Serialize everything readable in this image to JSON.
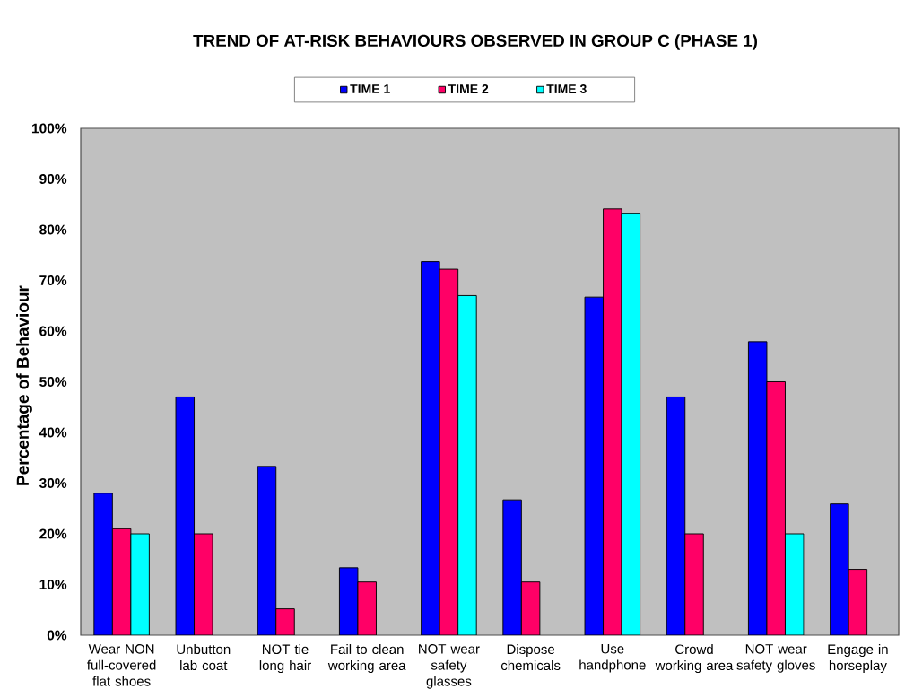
{
  "chart_data": {
    "type": "bar",
    "title": "TREND OF AT-RISK BEHAVIOURS OBSERVED IN GROUP C (PHASE 1)",
    "ylabel": "Percentage of Behaviour",
    "categories": [
      "Wear NON full-covered flat shoes",
      "Unbutton lab coat",
      "NOT tie long hair",
      "Fail to clean working area",
      "NOT wear safety glasses",
      "Dispose chemicals",
      "Use handphone",
      "Crowd working area",
      "NOT wear safety gloves",
      "Engage in horseplay"
    ],
    "series": [
      {
        "name": "TIME 1",
        "color": "#0000ff",
        "values": [
          28,
          47,
          33.3,
          13.3,
          73.7,
          26.7,
          66.7,
          47,
          57.9,
          25.9
        ]
      },
      {
        "name": "TIME 2",
        "color": "#ff0066",
        "values": [
          21,
          20,
          5.2,
          10.5,
          72.2,
          10.5,
          84.1,
          20,
          50,
          13
        ]
      },
      {
        "name": "TIME 3",
        "color": "#00ffff",
        "values": [
          20,
          null,
          null,
          null,
          67,
          null,
          83.3,
          null,
          20,
          null
        ]
      }
    ],
    "ylim": [
      0,
      100
    ],
    "yticks": [
      {
        "value": 0,
        "label": "0%"
      },
      {
        "value": 10,
        "label": "10%"
      },
      {
        "value": 20,
        "label": "20%"
      },
      {
        "value": 30,
        "label": "30%"
      },
      {
        "value": 40,
        "label": "40%"
      },
      {
        "value": 50,
        "label": "50%"
      },
      {
        "value": 60,
        "label": "60%"
      },
      {
        "value": 70,
        "label": "70%"
      },
      {
        "value": 80,
        "label": "80%"
      },
      {
        "value": 90,
        "label": "90%"
      },
      {
        "value": 100,
        "label": "100%"
      }
    ],
    "legend": "top"
  }
}
